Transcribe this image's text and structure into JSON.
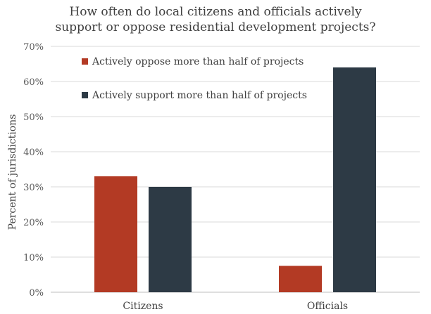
{
  "chart_data": {
    "type": "bar",
    "title_lines": [
      "How often do local citizens and officials actively",
      "support or oppose residential development projects?"
    ],
    "ylabel": "Percent of jurisdictions",
    "xlabel": "",
    "categories": [
      "Citizens",
      "Officials"
    ],
    "ylim": [
      0,
      70
    ],
    "ytick_step": 10,
    "ytick_suffix": "%",
    "grid": true,
    "legend_position": "top-left",
    "series": [
      {
        "name": "Actively oppose more than half of projects",
        "values": [
          33,
          7.5
        ],
        "color": "#B33A24"
      },
      {
        "name": "Actively support more than half of projects",
        "values": [
          30,
          64
        ],
        "color": "#2D3A45"
      }
    ]
  }
}
